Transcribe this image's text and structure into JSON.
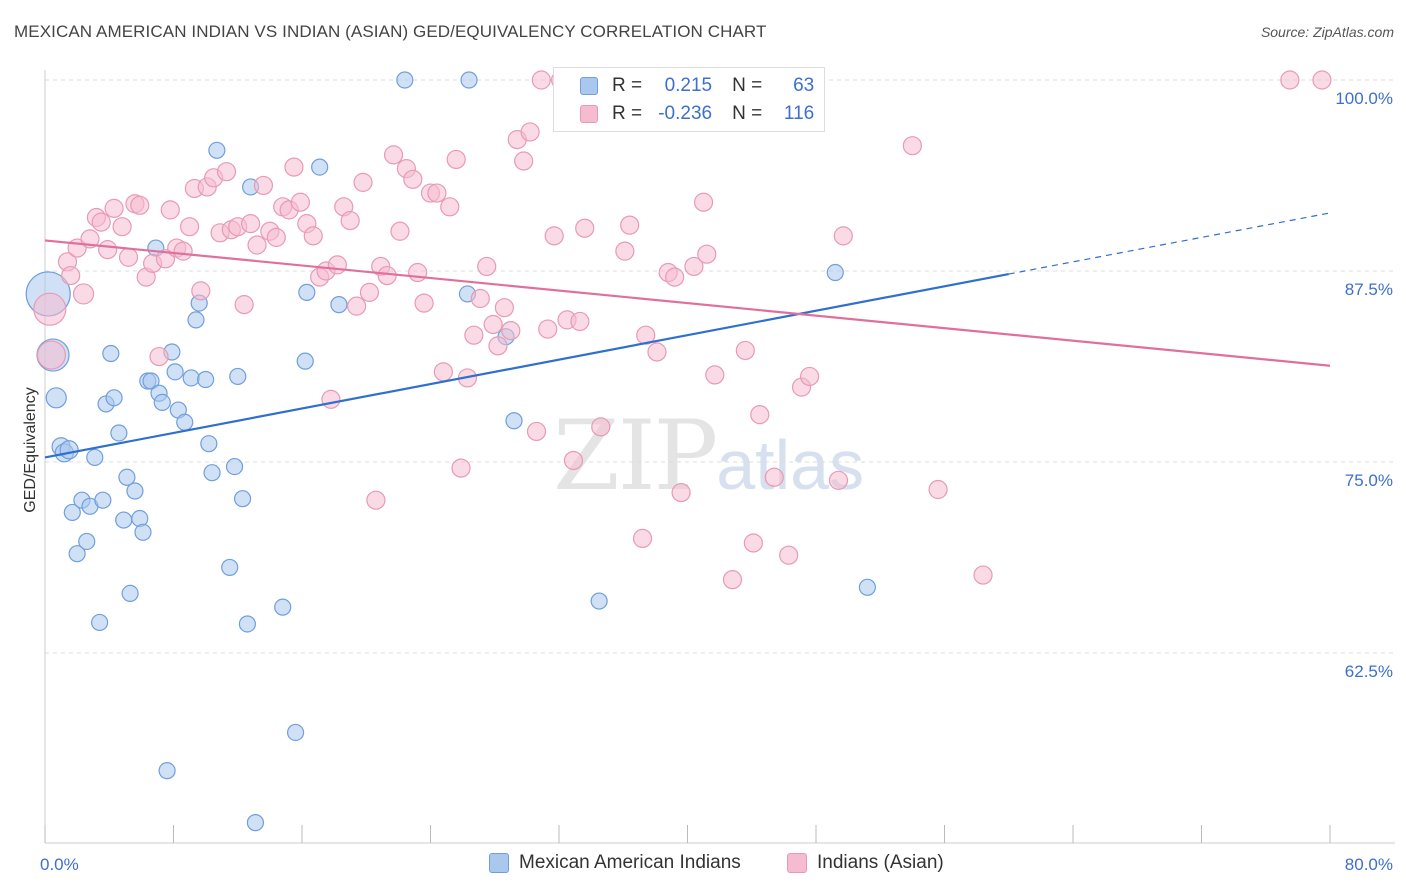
{
  "title": "MEXICAN AMERICAN INDIAN VS INDIAN (ASIAN) GED/EQUIVALENCY CORRELATION CHART",
  "source": "Source: ZipAtlas.com",
  "watermark": {
    "zip": "ZIP",
    "atlas": "atlas"
  },
  "legend": {
    "rows": [
      {
        "r_label": "R =",
        "r_value": "0.215",
        "n_label": "N =",
        "n_value": "63"
      },
      {
        "r_label": "R =",
        "r_value": "-0.236",
        "n_label": "N =",
        "n_value": "116"
      }
    ]
  },
  "colors": {
    "blue_fill": "#aac8ee",
    "blue_stroke": "#6f9fdc",
    "blue_line": "#2f6fd0",
    "pink_fill": "#f5bcd0",
    "pink_stroke": "#e89ab5",
    "pink_line": "#e0709b",
    "tick_label": "#3d6fcf",
    "grid": "#dddddd"
  },
  "chart_data": {
    "type": "scatter",
    "title": "MEXICAN AMERICAN INDIAN VS INDIAN (ASIAN) GED/EQUIVALENCY CORRELATION CHART",
    "xlabel": "",
    "ylabel": "GED/Equivalency",
    "xlim": [
      0,
      80
    ],
    "ylim": [
      51,
      102
    ],
    "x_ticks": [
      0,
      8,
      16,
      24,
      32,
      40,
      48,
      56,
      64,
      72,
      80
    ],
    "x_tick_labels": {
      "0": "0.0%",
      "80": "80.0%"
    },
    "y_ticks": [
      62.5,
      75.0,
      87.5,
      100.0
    ],
    "y_tick_labels": [
      "62.5%",
      "75.0%",
      "87.5%",
      "100.0%"
    ],
    "legend_position": "top-center",
    "grid": true,
    "series": [
      {
        "name": "Mexican American Indians",
        "trend": {
          "x": [
            0,
            60
          ],
          "y": [
            75.3,
            87.3
          ],
          "dashed_to": [
            80,
            91.3
          ]
        },
        "points": [
          [
            0.2,
            86.0,
            22
          ],
          [
            0.5,
            82.0,
            16
          ],
          [
            0.7,
            79.2,
            10
          ],
          [
            1.0,
            76.0,
            9
          ],
          [
            1.2,
            75.6,
            9
          ],
          [
            1.5,
            75.8,
            9
          ],
          [
            1.7,
            71.7,
            8
          ],
          [
            2.0,
            69.0,
            8
          ],
          [
            2.3,
            72.5,
            8
          ],
          [
            2.6,
            69.8,
            8
          ],
          [
            2.8,
            72.1,
            8
          ],
          [
            3.1,
            75.3,
            8
          ],
          [
            3.4,
            64.5,
            8
          ],
          [
            3.6,
            72.5,
            8
          ],
          [
            3.8,
            78.8,
            8
          ],
          [
            4.1,
            82.1,
            8
          ],
          [
            4.3,
            79.2,
            8
          ],
          [
            4.6,
            76.9,
            8
          ],
          [
            4.9,
            71.2,
            8
          ],
          [
            5.1,
            74.0,
            8
          ],
          [
            5.3,
            66.4,
            8
          ],
          [
            5.6,
            73.1,
            8
          ],
          [
            5.9,
            71.3,
            8
          ],
          [
            6.1,
            70.4,
            8
          ],
          [
            6.4,
            80.3,
            8
          ],
          [
            6.6,
            80.3,
            8
          ],
          [
            6.9,
            89.0,
            8
          ],
          [
            7.1,
            79.5,
            8
          ],
          [
            7.3,
            78.9,
            8
          ],
          [
            7.6,
            54.8,
            8
          ],
          [
            7.9,
            82.2,
            8
          ],
          [
            8.1,
            80.9,
            8
          ],
          [
            8.3,
            78.4,
            8
          ],
          [
            8.7,
            77.6,
            8
          ],
          [
            9.1,
            80.5,
            8
          ],
          [
            9.4,
            84.3,
            8
          ],
          [
            9.6,
            85.4,
            8
          ],
          [
            10.0,
            80.4,
            8
          ],
          [
            10.2,
            76.2,
            8
          ],
          [
            10.4,
            74.3,
            8
          ],
          [
            10.7,
            95.4,
            8
          ],
          [
            11.5,
            68.1,
            8
          ],
          [
            11.8,
            74.7,
            8
          ],
          [
            12.0,
            80.6,
            8
          ],
          [
            12.3,
            72.6,
            8
          ],
          [
            12.6,
            64.4,
            8
          ],
          [
            12.8,
            93.0,
            8
          ],
          [
            13.1,
            51.4,
            8
          ],
          [
            14.8,
            65.5,
            8
          ],
          [
            15.6,
            57.3,
            8
          ],
          [
            16.2,
            81.6,
            8
          ],
          [
            16.3,
            86.1,
            8
          ],
          [
            17.1,
            94.3,
            8
          ],
          [
            18.3,
            85.3,
            8
          ],
          [
            22.4,
            100.0,
            8
          ],
          [
            26.3,
            86.0,
            8
          ],
          [
            26.4,
            100.0,
            8
          ],
          [
            28.7,
            83.2,
            8
          ],
          [
            29.2,
            77.7,
            8
          ],
          [
            34.5,
            65.9,
            8
          ],
          [
            49.2,
            87.4,
            8
          ],
          [
            51.2,
            66.8,
            8
          ]
        ]
      },
      {
        "name": "Indians (Asian)",
        "trend": {
          "x": [
            0,
            80
          ],
          "y": [
            89.5,
            81.3
          ]
        },
        "points": [
          [
            0.3,
            85.0,
            16
          ],
          [
            0.4,
            82.0,
            14
          ],
          [
            1.4,
            88.1,
            9
          ],
          [
            1.6,
            87.2,
            9
          ],
          [
            2.0,
            89.0,
            9
          ],
          [
            2.4,
            86.0,
            10
          ],
          [
            2.8,
            89.6,
            9
          ],
          [
            3.2,
            91.0,
            9
          ],
          [
            3.5,
            90.7,
            9
          ],
          [
            3.9,
            88.9,
            9
          ],
          [
            4.3,
            91.6,
            9
          ],
          [
            4.8,
            90.4,
            9
          ],
          [
            5.2,
            88.4,
            9
          ],
          [
            5.6,
            91.9,
            9
          ],
          [
            5.9,
            91.8,
            9
          ],
          [
            6.3,
            87.1,
            9
          ],
          [
            6.7,
            88.0,
            9
          ],
          [
            7.1,
            81.9,
            9
          ],
          [
            7.5,
            88.3,
            9
          ],
          [
            7.8,
            91.5,
            9
          ],
          [
            8.2,
            89.0,
            9
          ],
          [
            8.6,
            88.8,
            9
          ],
          [
            9.0,
            90.4,
            9
          ],
          [
            9.3,
            92.9,
            9
          ],
          [
            9.7,
            86.2,
            9
          ],
          [
            10.1,
            93.0,
            9
          ],
          [
            10.5,
            93.6,
            9
          ],
          [
            10.9,
            90.0,
            9
          ],
          [
            11.3,
            94.0,
            9
          ],
          [
            11.6,
            90.2,
            9
          ],
          [
            12.0,
            90.4,
            9
          ],
          [
            12.4,
            85.3,
            9
          ],
          [
            12.8,
            90.6,
            9
          ],
          [
            13.2,
            89.2,
            9
          ],
          [
            13.6,
            93.1,
            9
          ],
          [
            14.0,
            90.1,
            9
          ],
          [
            14.4,
            89.7,
            9
          ],
          [
            14.8,
            91.7,
            9
          ],
          [
            15.2,
            91.5,
            9
          ],
          [
            15.5,
            94.3,
            9
          ],
          [
            15.9,
            92.0,
            9
          ],
          [
            16.3,
            90.6,
            9
          ],
          [
            16.7,
            89.8,
            9
          ],
          [
            17.1,
            87.1,
            9
          ],
          [
            17.5,
            87.5,
            9
          ],
          [
            17.8,
            79.1,
            9
          ],
          [
            18.2,
            87.9,
            9
          ],
          [
            18.6,
            91.7,
            9
          ],
          [
            19.0,
            90.8,
            9
          ],
          [
            19.4,
            85.2,
            9
          ],
          [
            19.8,
            93.3,
            9
          ],
          [
            20.2,
            86.1,
            9
          ],
          [
            20.6,
            72.5,
            9
          ],
          [
            20.9,
            87.8,
            9
          ],
          [
            21.3,
            87.2,
            9
          ],
          [
            21.7,
            95.1,
            9
          ],
          [
            22.1,
            90.1,
            9
          ],
          [
            22.5,
            94.2,
            9
          ],
          [
            22.9,
            93.5,
            9
          ],
          [
            23.2,
            87.4,
            9
          ],
          [
            23.6,
            85.4,
            9
          ],
          [
            24.0,
            92.6,
            9
          ],
          [
            24.4,
            92.6,
            9
          ],
          [
            24.8,
            80.9,
            9
          ],
          [
            25.2,
            91.7,
            9
          ],
          [
            25.6,
            94.8,
            9
          ],
          [
            25.9,
            74.6,
            9
          ],
          [
            26.3,
            80.5,
            9
          ],
          [
            26.7,
            83.3,
            9
          ],
          [
            27.1,
            85.7,
            9
          ],
          [
            27.5,
            87.8,
            9
          ],
          [
            27.9,
            84.0,
            9
          ],
          [
            28.2,
            82.6,
            9
          ],
          [
            28.6,
            85.1,
            9
          ],
          [
            29.0,
            83.6,
            9
          ],
          [
            29.4,
            96.1,
            9
          ],
          [
            29.8,
            94.7,
            9
          ],
          [
            30.2,
            96.6,
            9
          ],
          [
            30.6,
            77.0,
            9
          ],
          [
            30.9,
            100.0,
            9
          ],
          [
            31.3,
            83.7,
            9
          ],
          [
            31.7,
            89.8,
            9
          ],
          [
            32.1,
            100.0,
            9
          ],
          [
            32.5,
            84.3,
            9
          ],
          [
            32.9,
            75.1,
            9
          ],
          [
            33.3,
            84.2,
            9
          ],
          [
            33.6,
            90.3,
            9
          ],
          [
            34.6,
            77.3,
            9
          ],
          [
            36.1,
            88.8,
            9
          ],
          [
            36.4,
            90.5,
            9
          ],
          [
            37.2,
            70.0,
            9
          ],
          [
            37.4,
            83.3,
            9
          ],
          [
            38.1,
            82.2,
            9
          ],
          [
            38.8,
            87.4,
            9
          ],
          [
            39.2,
            87.1,
            9
          ],
          [
            39.6,
            73.0,
            9
          ],
          [
            40.4,
            87.8,
            9
          ],
          [
            41.2,
            88.6,
            9
          ],
          [
            41.0,
            92.0,
            9
          ],
          [
            41.7,
            80.7,
            9
          ],
          [
            42.8,
            67.3,
            9
          ],
          [
            43.6,
            82.3,
            9
          ],
          [
            44.1,
            69.7,
            9
          ],
          [
            44.5,
            78.1,
            9
          ],
          [
            45.4,
            74.0,
            9
          ],
          [
            46.3,
            68.9,
            9
          ],
          [
            47.1,
            79.9,
            9
          ],
          [
            47.6,
            80.6,
            9
          ],
          [
            49.4,
            73.8,
            9
          ],
          [
            49.7,
            89.8,
            9
          ],
          [
            54.0,
            95.7,
            9
          ],
          [
            55.6,
            73.2,
            9
          ],
          [
            58.4,
            67.6,
            9
          ],
          [
            77.5,
            100.0,
            9
          ],
          [
            79.5,
            100.0,
            9
          ]
        ]
      }
    ]
  }
}
